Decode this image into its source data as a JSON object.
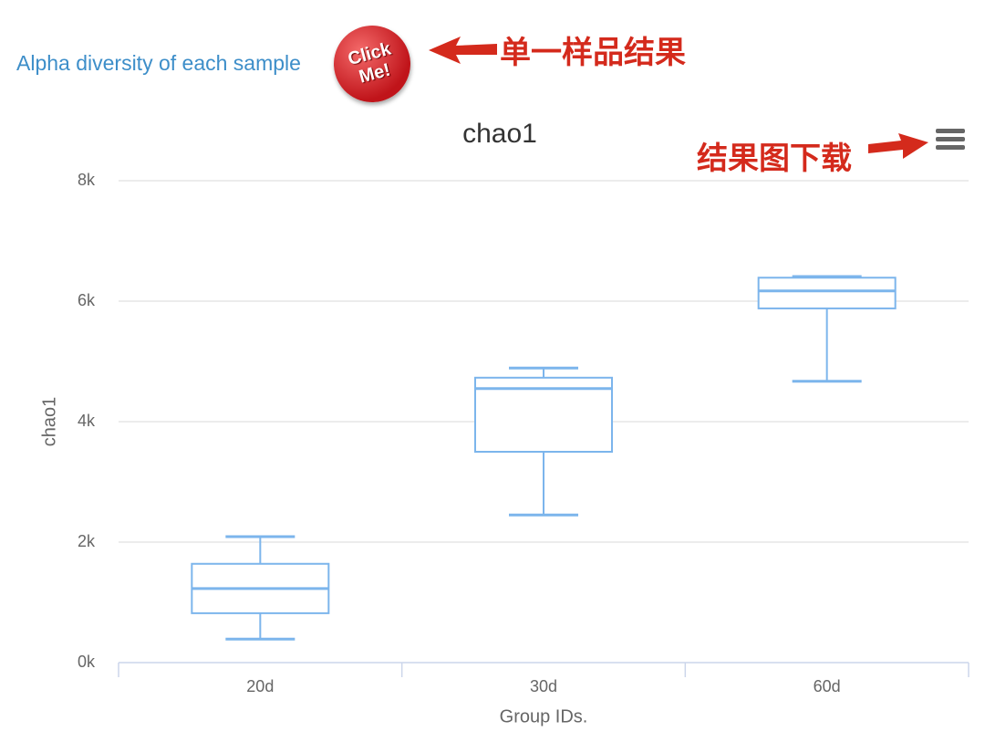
{
  "header": {
    "link": "Alpha diversity of each sample",
    "button": "Click Me!",
    "annotation_sample": "单一样品结果",
    "annotation_download": "结果图下载"
  },
  "chart_data": {
    "type": "boxplot",
    "title": "chao1",
    "x_label": "Group IDs.",
    "y_label": "chao1",
    "categories": [
      "20d",
      "30d",
      "60d"
    ],
    "low": [
      390,
      2450,
      4670
    ],
    "q1": [
      820,
      3500,
      5880
    ],
    "median": [
      1230,
      4550,
      6170
    ],
    "q3": [
      1640,
      4730,
      6390
    ],
    "high": [
      2090,
      4890,
      6410
    ],
    "color": "#7cb5ec",
    "ylim": [
      0,
      8000
    ],
    "yticks": [
      {
        "value": 0,
        "label": "0k"
      },
      {
        "value": 2000,
        "label": "2k"
      },
      {
        "value": 4000,
        "label": "4k"
      },
      {
        "value": 6000,
        "label": "6k"
      },
      {
        "value": 8000,
        "label": "8k"
      }
    ],
    "grid": true
  }
}
